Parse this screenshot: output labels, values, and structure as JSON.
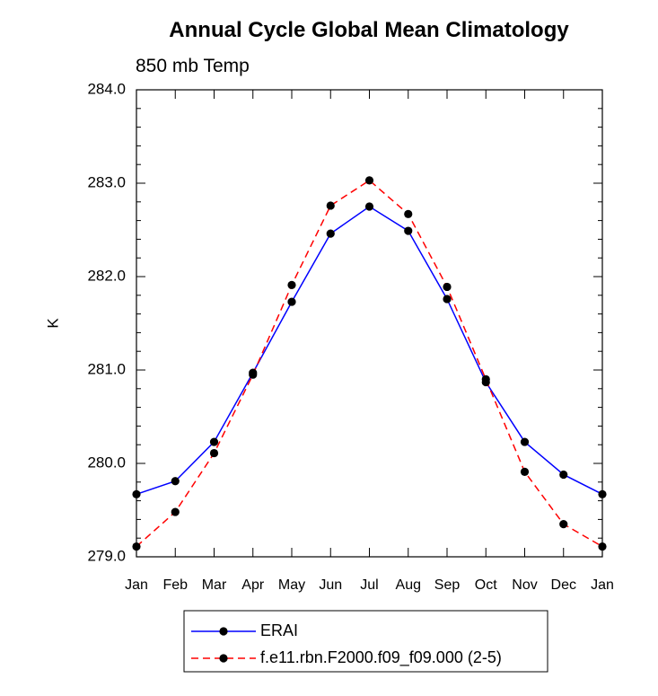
{
  "chart_data": {
    "type": "line",
    "title": "Annual Cycle Global Mean Climatology",
    "subtitle": "850 mb Temp",
    "xlabel": "",
    "ylabel": "K",
    "ylim": [
      279.0,
      284.0
    ],
    "yticks": [
      "284.0",
      "283.0",
      "282.0",
      "281.0",
      "280.0",
      "279.0"
    ],
    "yticks_values": [
      284.0,
      283.0,
      282.0,
      281.0,
      280.0,
      279.0
    ],
    "categories": [
      "Jan",
      "Feb",
      "Mar",
      "Apr",
      "May",
      "Jun",
      "Jul",
      "Aug",
      "Sep",
      "Oct",
      "Nov",
      "Dec",
      "Jan"
    ],
    "grid": false,
    "legend_position": "bottom",
    "series": [
      {
        "name": "ERAI",
        "color": "#0000ff",
        "line_style": "solid",
        "marker": "circle",
        "values": [
          279.67,
          279.81,
          280.23,
          280.97,
          281.73,
          282.46,
          282.75,
          282.49,
          281.76,
          280.87,
          280.23,
          279.88,
          279.67
        ]
      },
      {
        "name": "f.e11.rbn.F2000.f09_f09.000 (2-5)",
        "color": "#ff0000",
        "line_style": "dashed",
        "marker": "circle",
        "values": [
          279.11,
          279.48,
          280.11,
          280.95,
          281.91,
          282.76,
          283.03,
          282.67,
          281.89,
          280.9,
          279.91,
          279.35,
          279.11
        ]
      }
    ]
  }
}
